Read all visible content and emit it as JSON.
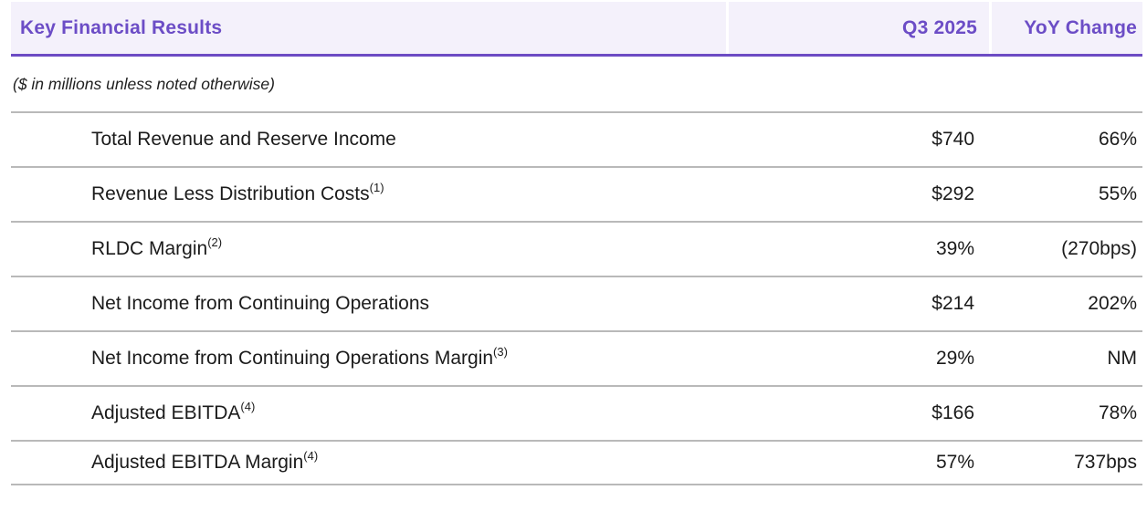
{
  "table": {
    "header": {
      "title": "Key Financial Results",
      "col_q3": "Q3 2025",
      "col_yoy": "YoY Change"
    },
    "note": "($ in millions unless noted otherwise)",
    "rows": [
      {
        "label": "Total Revenue and Reserve Income",
        "sup": "",
        "q3_2025": "$740",
        "yoy_change": "66%"
      },
      {
        "label": "Revenue Less Distribution Costs",
        "sup": "(1)",
        "q3_2025": "$292",
        "yoy_change": "55%"
      },
      {
        "label": "RLDC Margin",
        "sup": "(2)",
        "q3_2025": "39%",
        "yoy_change": "(270bps)"
      },
      {
        "label": "Net Income from Continuing Operations",
        "sup": "",
        "q3_2025": "$214",
        "yoy_change": "202%"
      },
      {
        "label": "Net Income from Continuing Operations Margin",
        "sup": "(3)",
        "q3_2025": "29%",
        "yoy_change": "NM"
      },
      {
        "label": "Adjusted EBITDA",
        "sup": "(4)",
        "q3_2025": "$166",
        "yoy_change": "78%"
      },
      {
        "label": "Adjusted EBITDA Margin",
        "sup": "(4)",
        "q3_2025": "57%",
        "yoy_change": "737bps"
      }
    ],
    "colors": {
      "accent_purple_text": "#6c4dc6",
      "accent_purple_rule": "#6c4bc4",
      "header_background": "#f4f1fb",
      "divider_gray": "#b9b9b9"
    }
  }
}
